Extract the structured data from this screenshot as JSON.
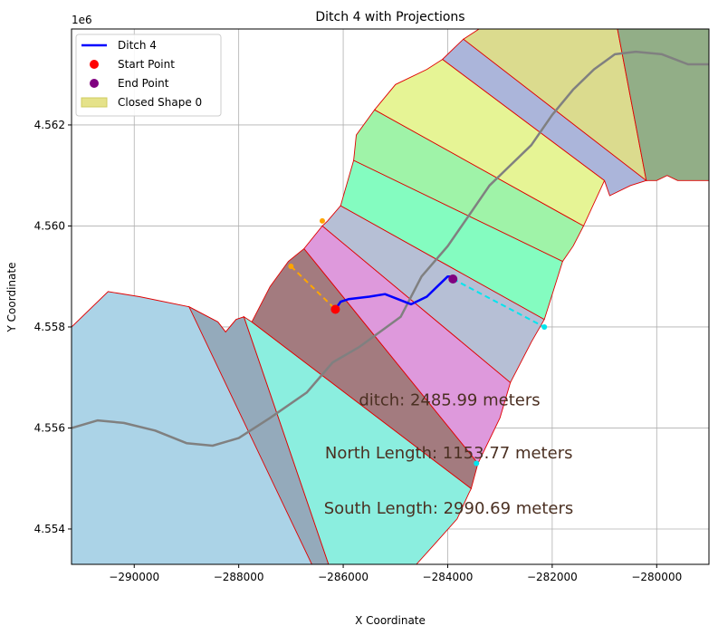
{
  "chart_data": {
    "type": "map",
    "title": "Ditch 4 with Projections",
    "xlabel": "X Coordinate",
    "ylabel": "Y Coordinate",
    "y_offset_label": "1e6",
    "xlim": [
      -291200,
      -279000
    ],
    "ylim": [
      4553.3,
      4563.9
    ],
    "x_ticks": [
      -290000,
      -288000,
      -286000,
      -284000,
      -282000,
      -280000
    ],
    "x_tick_labels": [
      "−290000",
      "−288000",
      "−286000",
      "−284000",
      "−282000",
      "−280000"
    ],
    "y_ticks": [
      4554,
      4556,
      4558,
      4560,
      4562
    ],
    "y_tick_labels": [
      "4.554",
      "4.556",
      "4.558",
      "4.560",
      "4.562"
    ],
    "grid": true,
    "legend_position": "top-left",
    "legend": [
      {
        "label": "Ditch 4",
        "kind": "line",
        "color": "#0000ff"
      },
      {
        "label": "Start Point",
        "kind": "dot",
        "color": "#ff0000"
      },
      {
        "label": "End Point",
        "kind": "dot",
        "color": "#800080"
      },
      {
        "label": "Closed Shape 0",
        "kind": "patch",
        "color": "#e5e28a"
      }
    ],
    "annotations": [
      {
        "text": "ditch: 2485.99 meters",
        "x": -285700,
        "y": 4556.45
      },
      {
        "text": "North Length: 1153.77 meters",
        "x": -286350,
        "y": 4555.4
      },
      {
        "text": "South Length: 2990.69 meters",
        "x": -286370,
        "y": 4554.3
      }
    ],
    "polygons": [
      {
        "color": "#abd3e7",
        "points": [
          [
            -291200,
            4558.0
          ],
          [
            -290500,
            4558.7
          ],
          [
            -289900,
            4558.6
          ],
          [
            -288950,
            4558.4
          ],
          [
            -288400,
            4558.1
          ],
          [
            -288250,
            4557.9
          ],
          [
            -288050,
            4558.15
          ],
          [
            -287900,
            4558.2
          ],
          [
            -286600,
            4553.3
          ],
          [
            -291200,
            4553.3
          ]
        ]
      },
      {
        "color": "#94aabb",
        "points": [
          [
            -288950,
            4558.4
          ],
          [
            -288400,
            4558.1
          ],
          [
            -288250,
            4557.9
          ],
          [
            -288050,
            4558.15
          ],
          [
            -287900,
            4558.2
          ],
          [
            -286280,
            4553.3
          ],
          [
            -286600,
            4553.3
          ]
        ]
      },
      {
        "color": "#8beedf",
        "points": [
          [
            -287900,
            4558.2
          ],
          [
            -287750,
            4558.1
          ],
          [
            -283550,
            4554.8
          ],
          [
            -283600,
            4554.7
          ],
          [
            -283820,
            4554.2
          ],
          [
            -284250,
            4553.7
          ],
          [
            -284600,
            4553.3
          ],
          [
            -286280,
            4553.3
          ]
        ]
      },
      {
        "color": "#a37b7f",
        "points": [
          [
            -287750,
            4558.1
          ],
          [
            -287400,
            4558.8
          ],
          [
            -287050,
            4559.3
          ],
          [
            -286750,
            4559.55
          ],
          [
            -283420,
            4555.3
          ],
          [
            -283550,
            4554.8
          ]
        ]
      },
      {
        "color": "#de99dc",
        "points": [
          [
            -286750,
            4559.55
          ],
          [
            -286400,
            4560.0
          ],
          [
            -282800,
            4556.9
          ],
          [
            -283000,
            4556.2
          ],
          [
            -283420,
            4555.3
          ]
        ]
      },
      {
        "color": "#b6bfd5",
        "points": [
          [
            -286400,
            4560.0
          ],
          [
            -286300,
            4560.1
          ],
          [
            -286050,
            4560.4
          ],
          [
            -282150,
            4558.15
          ],
          [
            -282400,
            4557.7
          ],
          [
            -282800,
            4556.9
          ]
        ]
      },
      {
        "color": "#84fcc0",
        "points": [
          [
            -286050,
            4560.4
          ],
          [
            -285800,
            4561.3
          ],
          [
            -281800,
            4559.3
          ],
          [
            -282150,
            4558.15
          ]
        ]
      },
      {
        "color": "#9ff3a8",
        "points": [
          [
            -285800,
            4561.3
          ],
          [
            -285750,
            4561.8
          ],
          [
            -285400,
            4562.3
          ],
          [
            -281400,
            4560.0
          ],
          [
            -281600,
            4559.6
          ],
          [
            -281800,
            4559.3
          ]
        ]
      },
      {
        "color": "#e6f495",
        "points": [
          [
            -285400,
            4562.3
          ],
          [
            -285000,
            4562.8
          ],
          [
            -284400,
            4563.1
          ],
          [
            -284100,
            4563.3
          ],
          [
            -281000,
            4560.9
          ],
          [
            -281400,
            4560.0
          ]
        ]
      },
      {
        "color": "#abb5da",
        "points": [
          [
            -284100,
            4563.3
          ],
          [
            -283700,
            4563.7
          ],
          [
            -280200,
            4560.9
          ],
          [
            -280500,
            4560.8
          ],
          [
            -280900,
            4560.6
          ],
          [
            -281000,
            4560.9
          ]
        ]
      },
      {
        "color": "#dbdb8e",
        "points": [
          [
            -283700,
            4563.7
          ],
          [
            -283400,
            4563.9
          ],
          [
            -280750,
            4563.9
          ],
          [
            -280200,
            4560.9
          ]
        ]
      },
      {
        "color": "#92ae87",
        "points": [
          [
            -280750,
            4563.9
          ],
          [
            -279000,
            4563.9
          ],
          [
            -279000,
            4560.9
          ],
          [
            -279600,
            4560.9
          ],
          [
            -279800,
            4561.0
          ],
          [
            -280000,
            4560.9
          ],
          [
            -280200,
            4560.9
          ]
        ]
      }
    ],
    "centerline": {
      "color": "#808080",
      "points": [
        [
          -291200,
          4556.0
        ],
        [
          -290700,
          4556.15
        ],
        [
          -290200,
          4556.1
        ],
        [
          -289600,
          4555.95
        ],
        [
          -289000,
          4555.7
        ],
        [
          -288500,
          4555.65
        ],
        [
          -288000,
          4555.8
        ],
        [
          -287400,
          4556.2
        ],
        [
          -286700,
          4556.7
        ],
        [
          -286200,
          4557.3
        ],
        [
          -285700,
          4557.6
        ],
        [
          -285300,
          4557.9
        ],
        [
          -284900,
          4558.2
        ],
        [
          -284500,
          4559.0
        ],
        [
          -284000,
          4559.6
        ],
        [
          -283600,
          4560.2
        ],
        [
          -283200,
          4560.8
        ],
        [
          -282800,
          4561.2
        ],
        [
          -282400,
          4561.6
        ],
        [
          -282000,
          4562.2
        ],
        [
          -281600,
          4562.7
        ],
        [
          -281200,
          4563.1
        ],
        [
          -280800,
          4563.4
        ],
        [
          -280400,
          4563.45
        ],
        [
          -279900,
          4563.4
        ],
        [
          -279400,
          4563.2
        ],
        [
          -279000,
          4563.2
        ]
      ]
    },
    "ditch": {
      "color": "#0000ff",
      "points": [
        [
          -286150,
          4558.35
        ],
        [
          -286050,
          4558.5
        ],
        [
          -285900,
          4558.55
        ],
        [
          -285500,
          4558.6
        ],
        [
          -285200,
          4558.65
        ],
        [
          -284950,
          4558.55
        ],
        [
          -284700,
          4558.45
        ],
        [
          -284400,
          4558.6
        ],
        [
          -284200,
          4558.8
        ],
        [
          -284000,
          4559.0
        ],
        [
          -283900,
          4559.0
        ]
      ]
    },
    "start_point": {
      "x": -286150,
      "y": 4558.35,
      "color": "#ff0000"
    },
    "end_point": {
      "x": -283900,
      "y": 4558.95,
      "color": "#800080"
    },
    "north_projection": {
      "color": "#ffa500",
      "points": [
        [
          -287000,
          4559.2
        ],
        [
          -286150,
          4558.35
        ]
      ],
      "marker_start": [
        -287000,
        4559.2
      ],
      "extra_marker": [
        -286400,
        4560.1
      ]
    },
    "south_projection": {
      "color": "#00e5ee",
      "points": [
        [
          -283900,
          4558.95
        ],
        [
          -282150,
          4558.0
        ]
      ],
      "marker_end": [
        -282150,
        4558.0
      ],
      "extra_marker": [
        -283450,
        4555.3
      ]
    }
  }
}
